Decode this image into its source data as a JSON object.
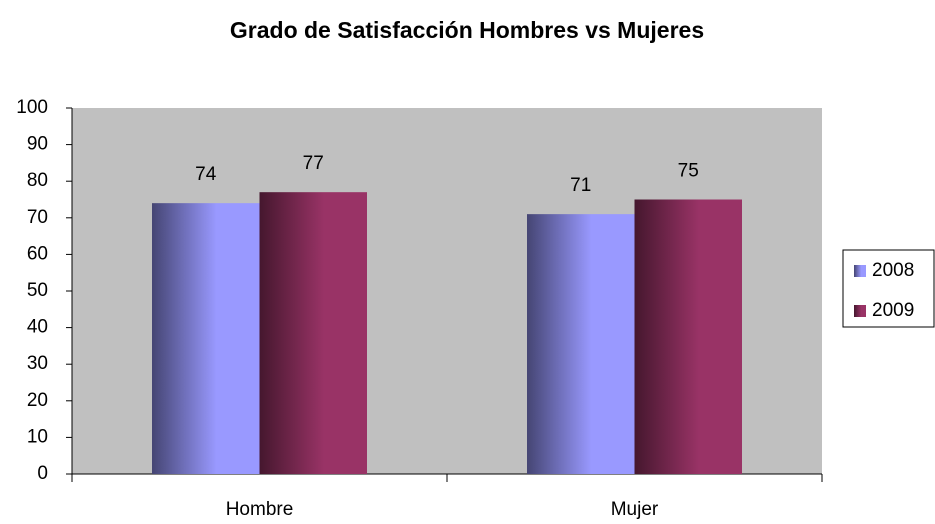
{
  "chart_data": {
    "type": "bar",
    "title": "Grado de Satisfacción Hombres vs Mujeres",
    "categories": [
      "Hombre",
      "Mujer"
    ],
    "series": [
      {
        "name": "2008",
        "color": "#9999ff",
        "values": [
          74,
          71
        ]
      },
      {
        "name": "2009",
        "color": "#993366",
        "values": [
          77,
          75
        ]
      }
    ],
    "ylim": [
      0,
      100
    ],
    "yticks": [
      0,
      10,
      20,
      30,
      40,
      50,
      60,
      70,
      80,
      90,
      100
    ],
    "legend": "right"
  }
}
